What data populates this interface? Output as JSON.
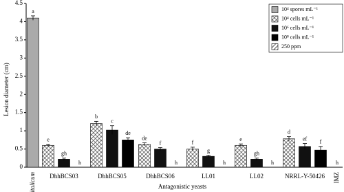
{
  "chart_data": {
    "type": "bar",
    "y_label": "Lesion diameter (cm)",
    "x_label": "Antagonistic yeasts",
    "categories": [
      "P. italicum",
      "DhhBCS03",
      "DhhBCS05",
      "DhhBCS06",
      "LL01",
      "LL02",
      "NRRL-Y-50426",
      "IMZ"
    ],
    "series": [
      {
        "name": "10⁴ spores mL⁻¹",
        "color": "#aaaaaa",
        "pattern": "solid",
        "values": [
          4.1,
          null,
          null,
          null,
          null,
          null,
          null,
          null
        ],
        "errors": [
          0.06,
          null,
          null,
          null,
          null,
          null,
          null,
          null
        ],
        "letters": [
          "a",
          null,
          null,
          null,
          null,
          null,
          null,
          null
        ]
      },
      {
        "name": "10⁴ cells mL⁻¹",
        "color": "#333333",
        "pattern": "checker",
        "values": [
          null,
          0.6,
          1.2,
          0.63,
          0.5,
          0.6,
          0.78,
          null
        ],
        "errors": [
          null,
          0.03,
          0.06,
          0.04,
          0.05,
          0.04,
          0.06,
          null
        ],
        "letters": [
          null,
          "e",
          "b",
          "de",
          "f",
          "e",
          "d",
          null
        ]
      },
      {
        "name": "10⁶ cells mL⁻¹",
        "color": "#111111",
        "pattern": "solid",
        "values": [
          null,
          0.22,
          1.02,
          0.5,
          0.3,
          0.22,
          0.57,
          null
        ],
        "errors": [
          null,
          0.03,
          0.12,
          0.04,
          0.03,
          0.03,
          0.08,
          null
        ],
        "letters": [
          null,
          "gh",
          "c",
          "f",
          "g",
          "gh",
          "ef",
          null
        ]
      },
      {
        "name": "10⁸ cells mL⁻¹",
        "color": "#000000",
        "pattern": "solid",
        "values": [
          null,
          0,
          0.75,
          0,
          0,
          0,
          0.47,
          null
        ],
        "errors": [
          null,
          0,
          0.06,
          0,
          0,
          0,
          0.1,
          null
        ],
        "letters": [
          null,
          "h",
          "de",
          "h",
          "h",
          "h",
          "f",
          null
        ]
      },
      {
        "name": "250 ppm",
        "color": "#222222",
        "pattern": "diagonal",
        "values": [
          null,
          null,
          null,
          null,
          null,
          null,
          null,
          0
        ],
        "errors": [
          null,
          null,
          null,
          null,
          null,
          null,
          null,
          0
        ],
        "letters": [
          null,
          null,
          null,
          null,
          null,
          null,
          null,
          "h"
        ]
      }
    ],
    "ylim": [
      0,
      4.5
    ],
    "yticks": [
      0,
      0.5,
      1,
      1.5,
      2,
      2.5,
      3,
      3.5,
      4,
      4.5
    ],
    "legend": "upper right"
  }
}
